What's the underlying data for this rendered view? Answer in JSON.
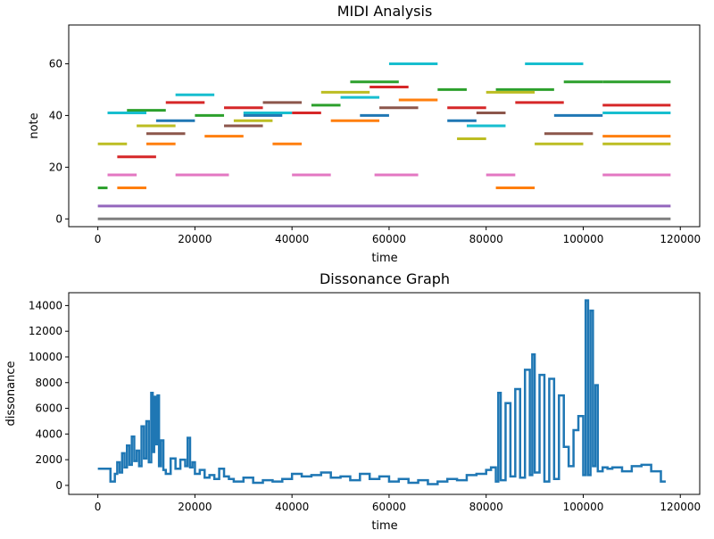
{
  "figure": {
    "background": "#ffffff"
  },
  "chart_data": [
    {
      "type": "line",
      "title": "MIDI Analysis",
      "xlabel": "time",
      "ylabel": "note",
      "xlim": [
        -6000,
        124000
      ],
      "ylim": [
        -3,
        75
      ],
      "xticks": [
        0,
        20000,
        40000,
        60000,
        80000,
        100000,
        120000
      ],
      "xtick_labels": [
        "0",
        "20000",
        "40000",
        "60000",
        "80000",
        "100000",
        "120000"
      ],
      "yticks": [
        0,
        20,
        40,
        60
      ],
      "ytick_labels": [
        "0",
        "20",
        "40",
        "60"
      ],
      "grid": false,
      "note": "Piano-roll style: each note is a short horizontal segment [start, end] at its pitch value.",
      "series": [
        {
          "color": "#7f7f7f",
          "segments": [
            [
              0,
              118000,
              0
            ]
          ]
        },
        {
          "color": "#9467bd",
          "segments": [
            [
              0,
              118000,
              5
            ]
          ]
        },
        {
          "color": "#e377c2",
          "segments": [
            [
              2000,
              8000,
              17
            ],
            [
              16000,
              27000,
              17
            ],
            [
              40000,
              48000,
              17
            ],
            [
              57000,
              66000,
              17
            ],
            [
              80000,
              86000,
              17
            ],
            [
              104000,
              118000,
              17
            ]
          ]
        },
        {
          "color": "#ff7f0e",
          "segments": [
            [
              4000,
              10000,
              12
            ],
            [
              10000,
              16000,
              29
            ],
            [
              22000,
              30000,
              32
            ],
            [
              36000,
              42000,
              29
            ],
            [
              48000,
              58000,
              38
            ],
            [
              62000,
              70000,
              46
            ],
            [
              82000,
              90000,
              12
            ],
            [
              104000,
              118000,
              32
            ]
          ]
        },
        {
          "color": "#2ca02c",
          "segments": [
            [
              0,
              2000,
              12
            ],
            [
              6000,
              14000,
              42
            ],
            [
              20000,
              26000,
              40
            ],
            [
              44000,
              50000,
              44
            ],
            [
              52000,
              62000,
              53
            ],
            [
              70000,
              76000,
              50
            ],
            [
              82000,
              94000,
              50
            ],
            [
              96000,
              104000,
              53
            ],
            [
              104000,
              118000,
              53
            ]
          ]
        },
        {
          "color": "#d62728",
          "segments": [
            [
              4000,
              12000,
              24
            ],
            [
              14000,
              22000,
              45
            ],
            [
              26000,
              34000,
              43
            ],
            [
              40000,
              46000,
              41
            ],
            [
              56000,
              64000,
              51
            ],
            [
              72000,
              80000,
              43
            ],
            [
              86000,
              96000,
              45
            ],
            [
              104000,
              118000,
              44
            ]
          ]
        },
        {
          "color": "#bcbd22",
          "segments": [
            [
              0,
              6000,
              29
            ],
            [
              8000,
              16000,
              36
            ],
            [
              28000,
              36000,
              38
            ],
            [
              46000,
              56000,
              49
            ],
            [
              74000,
              80000,
              31
            ],
            [
              80000,
              90000,
              49
            ],
            [
              90000,
              100000,
              29
            ],
            [
              104000,
              118000,
              29
            ]
          ]
        },
        {
          "color": "#17becf",
          "segments": [
            [
              2000,
              10000,
              41
            ],
            [
              16000,
              24000,
              48
            ],
            [
              30000,
              40000,
              41
            ],
            [
              50000,
              58000,
              47
            ],
            [
              60000,
              70000,
              60
            ],
            [
              76000,
              84000,
              36
            ],
            [
              88000,
              100000,
              60
            ],
            [
              104000,
              118000,
              41
            ]
          ]
        },
        {
          "color": "#8c564b",
          "segments": [
            [
              10000,
              18000,
              33
            ],
            [
              26000,
              34000,
              36
            ],
            [
              34000,
              42000,
              45
            ],
            [
              58000,
              66000,
              43
            ],
            [
              78000,
              84000,
              41
            ],
            [
              92000,
              102000,
              33
            ]
          ]
        },
        {
          "color": "#1f77b4",
          "segments": [
            [
              12000,
              20000,
              38
            ],
            [
              30000,
              38000,
              40
            ],
            [
              54000,
              60000,
              40
            ],
            [
              72000,
              78000,
              38
            ],
            [
              94000,
              104000,
              40
            ]
          ]
        }
      ]
    },
    {
      "type": "line",
      "title": "Dissonance Graph",
      "xlabel": "time",
      "ylabel": "dissonance",
      "xlim": [
        -6000,
        124000
      ],
      "ylim": [
        -700,
        15000
      ],
      "xticks": [
        0,
        20000,
        40000,
        60000,
        80000,
        100000,
        120000
      ],
      "xtick_labels": [
        "0",
        "20000",
        "40000",
        "60000",
        "80000",
        "100000",
        "120000"
      ],
      "yticks": [
        0,
        2000,
        4000,
        6000,
        8000,
        10000,
        12000,
        14000
      ],
      "ytick_labels": [
        "0",
        "2000",
        "4000",
        "6000",
        "8000",
        "10000",
        "12000",
        "14000"
      ],
      "grid": false,
      "series": [
        {
          "color": "#1f77b4",
          "x": [
            0,
            2500,
            2600,
            3500,
            4000,
            4500,
            5000,
            5500,
            6000,
            6500,
            7000,
            7500,
            8000,
            8500,
            9000,
            9500,
            10000,
            10500,
            11000,
            11300,
            11600,
            12000,
            12300,
            12600,
            13000,
            13500,
            14000,
            15000,
            16000,
            17000,
            18000,
            18500,
            19000,
            19500,
            20000,
            21000,
            22000,
            23000,
            24000,
            25000,
            26000,
            27000,
            28000,
            30000,
            32000,
            34000,
            36000,
            38000,
            40000,
            42000,
            44000,
            46000,
            48000,
            50000,
            52000,
            54000,
            56000,
            58000,
            60000,
            62000,
            64000,
            66000,
            68000,
            70000,
            72000,
            74000,
            76000,
            78000,
            80000,
            81000,
            82000,
            82500,
            83000,
            84000,
            85000,
            86000,
            87000,
            88000,
            89000,
            89500,
            90000,
            91000,
            92000,
            93000,
            94000,
            95000,
            96000,
            97000,
            98000,
            99000,
            100000,
            100500,
            101000,
            101500,
            102000,
            102500,
            103000,
            104000,
            105000,
            106000,
            108000,
            110000,
            112000,
            114000,
            116000,
            117000
          ],
          "y": [
            1300,
            1300,
            300,
            900,
            1800,
            1000,
            2500,
            1400,
            3100,
            1600,
            3800,
            1900,
            2700,
            1500,
            4600,
            2100,
            5000,
            1800,
            7200,
            2600,
            6900,
            3200,
            7000,
            1500,
            3500,
            1200,
            900,
            2100,
            1300,
            2000,
            1500,
            3700,
            1400,
            1800,
            900,
            1200,
            600,
            800,
            500,
            1300,
            700,
            500,
            300,
            600,
            200,
            400,
            300,
            500,
            900,
            700,
            800,
            1000,
            600,
            700,
            400,
            900,
            500,
            700,
            300,
            500,
            200,
            400,
            100,
            300,
            500,
            400,
            800,
            900,
            1200,
            1400,
            300,
            7200,
            400,
            6400,
            700,
            7500,
            600,
            9000,
            800,
            10200,
            1000,
            8600,
            300,
            8300,
            500,
            7000,
            3000,
            1500,
            4300,
            5400,
            800,
            14400,
            800,
            13600,
            1500,
            7800,
            1100,
            1400,
            1300,
            1400,
            1100,
            1500,
            1600,
            1100,
            300,
            300
          ]
        }
      ]
    }
  ]
}
